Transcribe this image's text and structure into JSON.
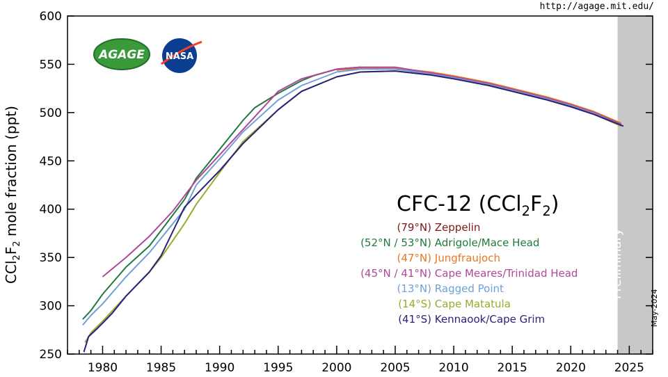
{
  "url": "http://agage.mit.edu/",
  "date_stamp": "May-2024",
  "logos": {
    "agage": "AGAGE",
    "nasa": "NASA"
  },
  "chart_data": {
    "type": "line",
    "title_parts": [
      "CFC-12 (CCl",
      "2",
      "F",
      "2",
      ")"
    ],
    "ylabel_parts": [
      "CCl",
      "2",
      "F",
      "2",
      " mole fraction (ppt)"
    ],
    "xlim": [
      1977,
      2027
    ],
    "ylim": [
      250,
      600
    ],
    "xticks": [
      1980,
      1985,
      1990,
      1995,
      2000,
      2005,
      2010,
      2015,
      2020,
      2025
    ],
    "yticks": [
      250,
      300,
      350,
      400,
      450,
      500,
      550,
      600
    ],
    "preliminary": {
      "label": "Preliminary",
      "from": 2024,
      "to": 2027,
      "color": "#c8c8c8"
    },
    "grid": false,
    "series": [
      {
        "name": "Zeppelin",
        "lat": "(79°N)",
        "color": "#7b1a1a",
        "x": [
          2001,
          2003,
          2005,
          2008,
          2010,
          2013,
          2015,
          2018,
          2020,
          2022,
          2024.3
        ],
        "y": [
          545,
          546,
          545,
          541,
          537,
          530,
          524,
          515,
          508,
          500,
          488
        ]
      },
      {
        "name": "Adrigole/Mace Head",
        "lat": "(52°N / 53°N)",
        "color": "#1e7a3c",
        "x": [
          1978.3,
          1979,
          1980,
          1982,
          1984,
          1985,
          1987,
          1988,
          1990,
          1992,
          1993,
          1995,
          1997,
          1998,
          2000,
          2002,
          2005,
          2008,
          2010,
          2013,
          2015,
          2018,
          2020,
          2022,
          2024.3
        ],
        "y": [
          286,
          295,
          312,
          340,
          362,
          378,
          410,
          432,
          462,
          492,
          505,
          520,
          533,
          538,
          545,
          547,
          545,
          541,
          537,
          530,
          524,
          515,
          508,
          500,
          488
        ]
      },
      {
        "name": "Jungfraujoch",
        "lat": "(47°N)",
        "color": "#e87722",
        "x": [
          2000,
          2002,
          2005,
          2008,
          2010,
          2013,
          2015,
          2018,
          2020,
          2022,
          2024.3
        ],
        "y": [
          544,
          546,
          546,
          542,
          538,
          531,
          525,
          516,
          509,
          501,
          489
        ]
      },
      {
        "name": "Cape Meares/Trinidad Head",
        "lat": "(45°N / 41°N)",
        "color": "#b0479a",
        "x": [
          1980,
          1982,
          1984,
          1986,
          1988,
          1995,
          1997,
          2000,
          2002,
          2005,
          2008,
          2010,
          2013,
          2015,
          2018,
          2020,
          2022,
          2024.3
        ],
        "y": [
          330,
          350,
          372,
          398,
          430,
          522,
          535,
          545,
          547,
          547,
          541,
          537,
          530,
          524,
          515,
          508,
          500,
          488
        ]
      },
      {
        "name": "Ragged Point",
        "lat": "(13°N)",
        "color": "#6fa0d6",
        "x": [
          1978.3,
          1979,
          1980,
          1982,
          1984,
          1985,
          1987,
          1988,
          1990,
          1992,
          1995,
          1997,
          2000,
          2002,
          2005,
          2008,
          2010,
          2013,
          2015,
          2018,
          2020,
          2022,
          2024.3
        ],
        "y": [
          280,
          290,
          302,
          330,
          355,
          370,
          400,
          425,
          452,
          480,
          513,
          528,
          542,
          545,
          545,
          540,
          536,
          529,
          523,
          514,
          507,
          499,
          487
        ]
      },
      {
        "name": "Cape Matatula",
        "lat": "(14°S)",
        "color": "#9aaa2e",
        "x": [
          1978.5,
          1979,
          1980,
          1982,
          1984,
          1985,
          1987,
          1988,
          1990,
          1992,
          1995,
          1997,
          2000,
          2002,
          2005,
          2008,
          2010,
          2013,
          2015,
          2018,
          2020,
          2022,
          2024.3
        ],
        "y": [
          262,
          272,
          284,
          310,
          335,
          350,
          385,
          405,
          438,
          470,
          503,
          522,
          537,
          542,
          543,
          539,
          535,
          528,
          522,
          513,
          506,
          498,
          486
        ]
      },
      {
        "name": "Kennaook/Cape Grim",
        "lat": "(41°S)",
        "color": "#2a1f7a",
        "x": [
          1978.4,
          1978.8,
          1979.5,
          1980,
          1980.8,
          1982,
          1984,
          1985,
          1987,
          1988,
          1990,
          1992,
          1995,
          1997,
          2000,
          2002,
          2005,
          2008,
          2010,
          2013,
          2015,
          2018,
          2020,
          2022,
          2024.5
        ],
        "y": [
          252,
          268,
          276,
          282,
          292,
          310,
          335,
          352,
          402,
          415,
          440,
          468,
          503,
          522,
          537,
          542,
          543,
          539,
          535,
          528,
          522,
          513,
          506,
          498,
          486
        ]
      }
    ]
  }
}
